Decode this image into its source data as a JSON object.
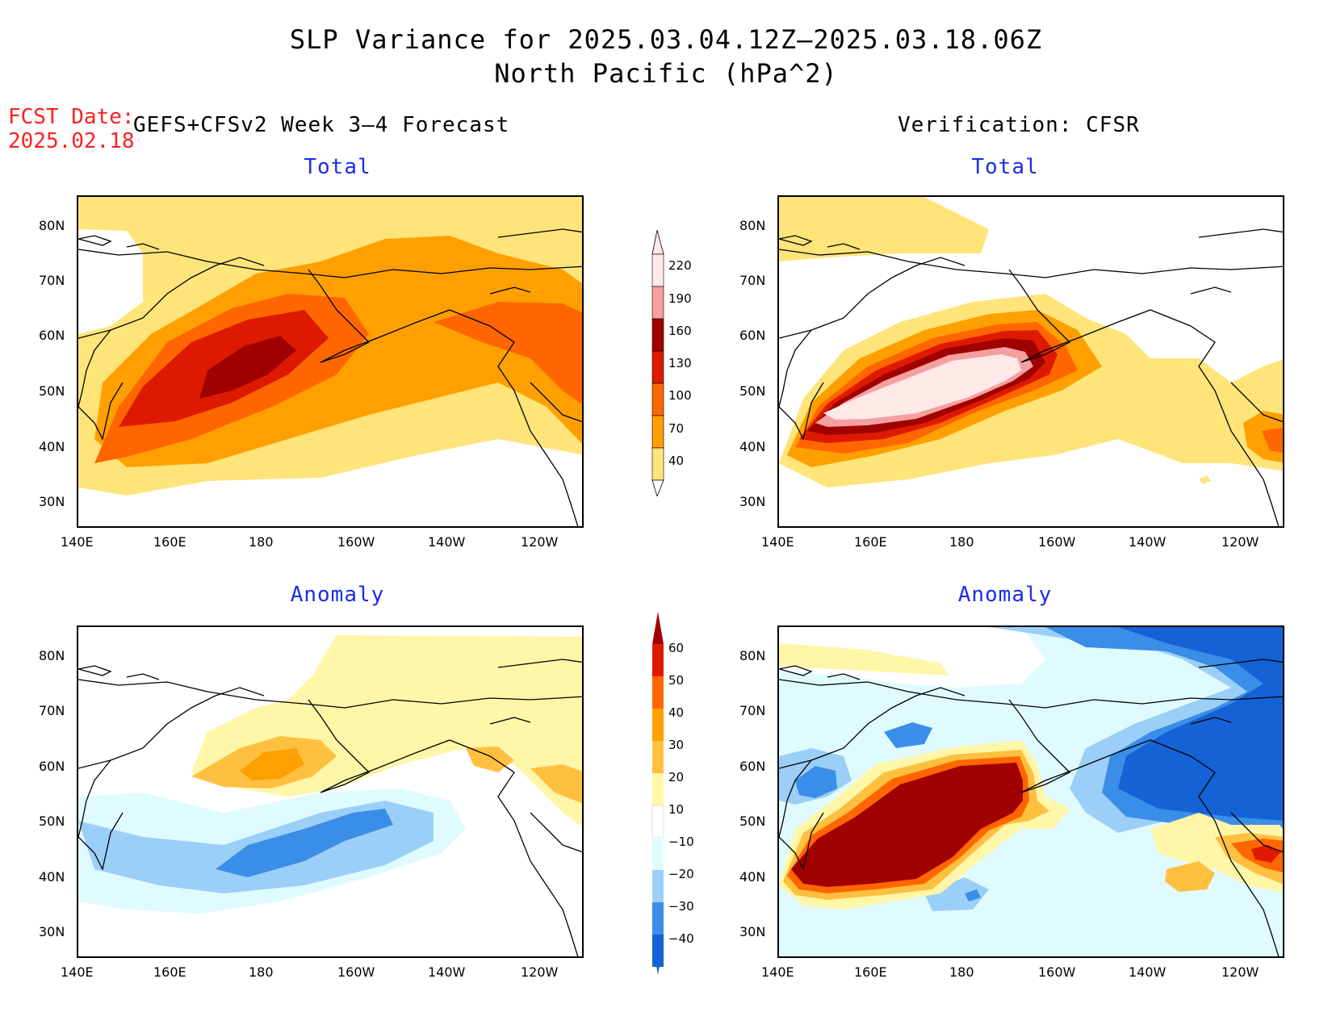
{
  "header": {
    "title_line1": "SLP Variance for 2025.03.04.12Z–2025.03.18.06Z",
    "title_line2": "North Pacific (hPa^2)",
    "fcst_label": "FCST Date:",
    "fcst_date": "2025.02.18",
    "left_heading": "GEFS+CFSv2 Week 3–4 Forecast",
    "right_heading": "Verification: CFSR"
  },
  "panels": {
    "top_left_title": "Total",
    "top_right_title": "Total",
    "bottom_left_title": "Anomaly",
    "bottom_right_title": "Anomaly"
  },
  "axes": {
    "lat_labels": [
      "80N",
      "70N",
      "60N",
      "50N",
      "40N",
      "30N"
    ],
    "lon_labels": [
      "140E",
      "160E",
      "180",
      "160W",
      "140W",
      "120W"
    ]
  },
  "total_colorbar": {
    "labels": [
      "220",
      "190",
      "160",
      "130",
      "100",
      "70",
      "40"
    ],
    "colors": [
      "#ffe8e8",
      "#f4a0a0",
      "#a00000",
      "#dd1a00",
      "#ff6600",
      "#ffa000",
      "#ffe47a"
    ]
  },
  "anomaly_colorbar": {
    "labels": [
      "60",
      "50",
      "40",
      "30",
      "20",
      "10",
      "−10",
      "−20",
      "−30",
      "−40"
    ],
    "colors": [
      "#a00000",
      "#dd1a00",
      "#ff6600",
      "#ffa000",
      "#ffc040",
      "#fff6a8",
      "#ffffff",
      "#e0fbff",
      "#9ccff8",
      "#3a8ee8",
      "#1462d6"
    ]
  }
}
